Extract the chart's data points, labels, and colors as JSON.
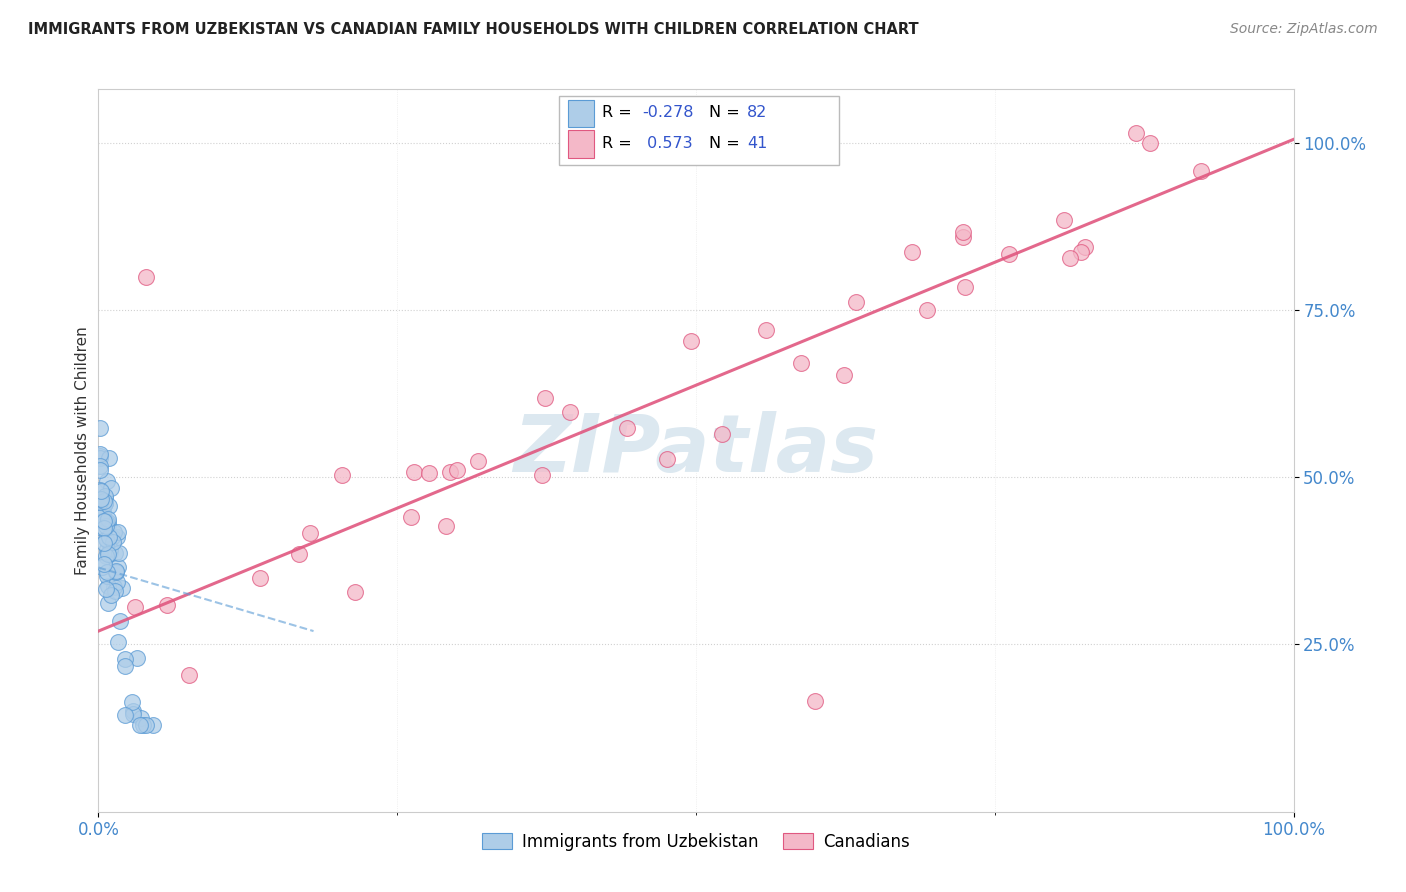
{
  "title": "IMMIGRANTS FROM UZBEKISTAN VS CANADIAN FAMILY HOUSEHOLDS WITH CHILDREN CORRELATION CHART",
  "source": "Source: ZipAtlas.com",
  "ylabel": "Family Households with Children",
  "legend_blue_r": "-0.278",
  "legend_blue_n": "82",
  "legend_pink_r": "0.573",
  "legend_pink_n": "41",
  "legend_blue_label": "Immigrants from Uzbekistan",
  "legend_pink_label": "Canadians",
  "blue_color": "#aecde8",
  "blue_edge_color": "#5b9bd5",
  "pink_color": "#f4b8c8",
  "pink_edge_color": "#e05880",
  "pink_line_color": "#e05880",
  "blue_line_color": "#5b9bd5",
  "r_n_color": "#3355cc",
  "tick_color": "#4488cc",
  "watermark_color": "#dce8f0",
  "grid_color": "#cccccc",
  "title_color": "#222222",
  "source_color": "#888888",
  "ylabel_color": "#333333",
  "xlim": [
    0.0,
    1.0
  ],
  "ylim": [
    0.0,
    1.08
  ],
  "yticks": [
    0.25,
    0.5,
    0.75,
    1.0
  ],
  "ytick_labels": [
    "25.0%",
    "50.0%",
    "75.0%",
    "100.0%"
  ],
  "xticks": [
    0.0,
    1.0
  ],
  "xtick_labels": [
    "0.0%",
    "100.0%"
  ],
  "pink_line_x0": 0.0,
  "pink_line_y0": 0.27,
  "pink_line_x1": 1.0,
  "pink_line_y1": 1.005,
  "blue_line_x0": 0.0,
  "blue_line_y0": 0.365,
  "blue_line_x1": 0.18,
  "blue_line_y1": 0.27
}
